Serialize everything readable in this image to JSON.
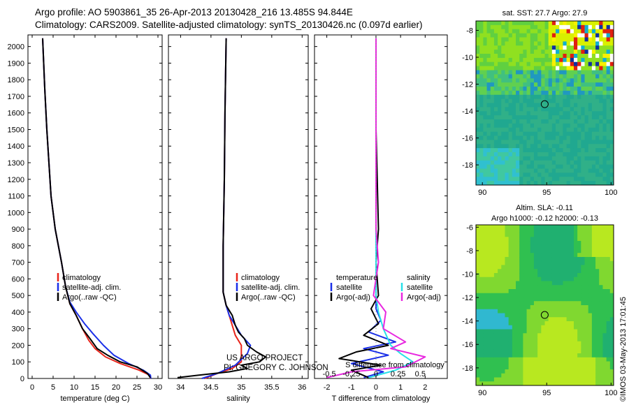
{
  "header": {
    "line1": "Argo profile: AO 5903861_35 26-Apr-2013 20130428_216 13.485S 94.844E",
    "line2": "Climatology: CARS2009. Satellite-adjusted climatology: synTS_20130426.nc (0.097d earlier)"
  },
  "colors": {
    "climatology": "#e8241a",
    "satellite": "#1a2fe8",
    "argo": "#000000",
    "salinity_satellite": "#28e0e8",
    "salinity_argo": "#e828e0"
  },
  "chart_data": [
    {
      "type": "line",
      "name": "temperature-profile",
      "xlabel": "temperature (deg C)",
      "xlim": [
        -1,
        31
      ],
      "ylim": [
        2070,
        0
      ],
      "xticks": [
        0,
        5,
        10,
        15,
        20,
        25,
        30
      ],
      "yticks": [
        0,
        100,
        200,
        300,
        400,
        500,
        600,
        700,
        800,
        900,
        1000,
        1100,
        1200,
        1300,
        1400,
        1500,
        1600,
        1700,
        1800,
        1900,
        2000
      ],
      "legend": [
        "climatology",
        "satellite-adj. clim.",
        "Argo(..raw -QC)"
      ],
      "series": [
        {
          "name": "climatology",
          "color": "#e8241a",
          "points": [
            [
              28.2,
              0
            ],
            [
              28.0,
              20
            ],
            [
              25.5,
              50
            ],
            [
              21,
              90
            ],
            [
              17.5,
              130
            ],
            [
              15,
              180
            ],
            [
              13.5,
              230
            ],
            [
              12,
              300
            ],
            [
              10.5,
              380
            ],
            [
              9,
              450
            ],
            [
              8,
              550
            ],
            [
              7,
              700
            ],
            [
              5.5,
              900
            ],
            [
              4.5,
              1100
            ],
            [
              4,
              1300
            ],
            [
              3.5,
              1500
            ],
            [
              3,
              1750
            ],
            [
              2.5,
              2050
            ]
          ]
        },
        {
          "name": "satellite",
          "color": "#1a2fe8",
          "points": [
            [
              28.3,
              0
            ],
            [
              28.2,
              20
            ],
            [
              26.5,
              50
            ],
            [
              23,
              90
            ],
            [
              19.5,
              140
            ],
            [
              17,
              200
            ],
            [
              14.5,
              270
            ],
            [
              12.5,
              330
            ],
            [
              10.5,
              400
            ],
            [
              9,
              460
            ],
            [
              8,
              550
            ],
            [
              7,
              700
            ],
            [
              5.5,
              900
            ],
            [
              4.5,
              1100
            ],
            [
              4,
              1300
            ],
            [
              3.5,
              1500
            ],
            [
              3,
              1750
            ],
            [
              2.5,
              2050
            ]
          ]
        },
        {
          "name": "argo",
          "color": "#000000",
          "points": [
            [
              28.2,
              5
            ],
            [
              27.5,
              30
            ],
            [
              25,
              70
            ],
            [
              21,
              100
            ],
            [
              18,
              140
            ],
            [
              15.5,
              180
            ],
            [
              13.8,
              240
            ],
            [
              12,
              300
            ],
            [
              10.5,
              380
            ],
            [
              9,
              450
            ],
            [
              8,
              550
            ],
            [
              7,
              700
            ],
            [
              5.5,
              900
            ],
            [
              4.5,
              1100
            ],
            [
              4,
              1300
            ],
            [
              3.5,
              1500
            ],
            [
              3,
              1750
            ],
            [
              2.5,
              2050
            ]
          ]
        }
      ]
    },
    {
      "type": "line",
      "name": "salinity-profile",
      "xlabel": "salinity",
      "xlim": [
        33.8,
        36.1
      ],
      "ylim": [
        2070,
        0
      ],
      "xticks": [
        34,
        34.5,
        35,
        35.5,
        36
      ],
      "legend": [
        "climatology",
        "satellite-adj. clim.",
        "Argo(..raw -QC)"
      ],
      "series": [
        {
          "name": "climatology",
          "color": "#e8241a",
          "points": [
            [
              34.4,
              0
            ],
            [
              34.6,
              30
            ],
            [
              34.85,
              60
            ],
            [
              35.0,
              100
            ],
            [
              35.0,
              150
            ],
            [
              35.0,
              200
            ],
            [
              34.9,
              260
            ],
            [
              34.85,
              320
            ],
            [
              34.8,
              380
            ],
            [
              34.75,
              440
            ],
            [
              34.7,
              520
            ],
            [
              34.7,
              800
            ],
            [
              34.72,
              1200
            ],
            [
              34.73,
              1600
            ],
            [
              34.75,
              2050
            ]
          ]
        },
        {
          "name": "satellite",
          "color": "#1a2fe8",
          "points": [
            [
              34.35,
              0
            ],
            [
              34.6,
              30
            ],
            [
              34.9,
              80
            ],
            [
              35.1,
              150
            ],
            [
              35.15,
              200
            ],
            [
              35.0,
              260
            ],
            [
              34.9,
              320
            ],
            [
              34.8,
              380
            ],
            [
              34.75,
              440
            ],
            [
              34.7,
              520
            ],
            [
              34.7,
              800
            ],
            [
              34.72,
              1200
            ],
            [
              34.73,
              1600
            ],
            [
              34.75,
              2050
            ]
          ]
        },
        {
          "name": "argo",
          "color": "#000000",
          "points": [
            [
              33.95,
              5
            ],
            [
              34.3,
              20
            ],
            [
              34.8,
              40
            ],
            [
              35.1,
              60
            ],
            [
              35.0,
              80
            ],
            [
              35.3,
              100
            ],
            [
              35.4,
              130
            ],
            [
              35.25,
              160
            ],
            [
              35.1,
              200
            ],
            [
              35.05,
              240
            ],
            [
              34.95,
              280
            ],
            [
              34.9,
              320
            ],
            [
              34.85,
              380
            ],
            [
              34.75,
              440
            ],
            [
              34.7,
              520
            ],
            [
              34.7,
              800
            ],
            [
              34.72,
              1200
            ],
            [
              34.73,
              1600
            ],
            [
              34.75,
              2050
            ]
          ]
        }
      ]
    },
    {
      "type": "line",
      "name": "difference-profile",
      "xlabel": "T difference from climatology",
      "xlabel_top": "S difference from climatology",
      "xlim": [
        -2.5,
        2.9
      ],
      "ylim": [
        2070,
        0
      ],
      "xticks": [
        -2,
        -1,
        0,
        1,
        2
      ],
      "sticks": [
        "-0.5",
        "-0.25",
        "0",
        "0.25",
        "0.5"
      ],
      "legend_temperature": [
        "temperature",
        "satellite",
        "Argo(-adj)"
      ],
      "legend_salinity": [
        "salinity",
        "satellite",
        "Argo(-adj)"
      ],
      "series": [
        {
          "name": "temperature-satellite",
          "color": "#1a2fe8",
          "points": [
            [
              -0.5,
              5
            ],
            [
              0.3,
              40
            ],
            [
              -1.0,
              90
            ],
            [
              0.5,
              140
            ],
            [
              -0.5,
              180
            ],
            [
              0.8,
              220
            ],
            [
              -0.3,
              280
            ],
            [
              0.2,
              350
            ],
            [
              0,
              420
            ],
            [
              0,
              600
            ],
            [
              0,
              900
            ],
            [
              0,
              1500
            ],
            [
              0,
              2050
            ]
          ]
        },
        {
          "name": "temperature-argo",
          "color": "#000000",
          "points": [
            [
              -0.3,
              5
            ],
            [
              -1.0,
              50
            ],
            [
              0.2,
              80
            ],
            [
              -1.5,
              120
            ],
            [
              -0.8,
              160
            ],
            [
              0.5,
              200
            ],
            [
              -0.5,
              260
            ],
            [
              0.1,
              330
            ],
            [
              -0.2,
              420
            ],
            [
              0.1,
              500
            ],
            [
              0,
              700
            ],
            [
              0.1,
              900
            ],
            [
              0,
              1500
            ],
            [
              0,
              2050
            ]
          ]
        },
        {
          "name": "salinity-satellite",
          "color": "#28e0e8",
          "points": [
            [
              -0.3,
              5
            ],
            [
              0.8,
              50
            ],
            [
              1.5,
              100
            ],
            [
              1.0,
              150
            ],
            [
              0.6,
              200
            ],
            [
              0.3,
              300
            ],
            [
              0.1,
              400
            ],
            [
              0,
              500
            ],
            [
              0,
              900
            ],
            [
              0,
              1500
            ],
            [
              0,
              2050
            ]
          ]
        },
        {
          "name": "salinity-argo",
          "color": "#e828e0",
          "points": [
            [
              -2.0,
              5
            ],
            [
              -1.0,
              40
            ],
            [
              1.2,
              70
            ],
            [
              2.0,
              130
            ],
            [
              0.6,
              180
            ],
            [
              1.2,
              220
            ],
            [
              0.3,
              300
            ],
            [
              0.4,
              400
            ],
            [
              -0.1,
              500
            ],
            [
              0.1,
              700
            ],
            [
              0,
              900
            ],
            [
              0,
              1500
            ],
            [
              0,
              2050
            ]
          ]
        }
      ]
    },
    {
      "type": "heatmap",
      "name": "sst-map",
      "title": "sat. SST: 27.7 Argo: 27.9",
      "xlim": [
        89.5,
        100.2
      ],
      "ylim": [
        -19.5,
        -7.3
      ],
      "xticks": [
        90,
        95,
        100
      ],
      "yticks": [
        -8,
        -10,
        -12,
        -14,
        -16,
        -18
      ],
      "argo_position": [
        94.844,
        -13.485
      ]
    },
    {
      "type": "heatmap",
      "name": "sla-map",
      "title": "Altim. SLA: -0.11",
      "subtitle": "Argo h1000: -0.12 h2000: -0.13",
      "xlim": [
        89.5,
        100.2
      ],
      "ylim": [
        -19.5,
        -5.8
      ],
      "xticks": [
        90,
        95,
        100
      ],
      "yticks": [
        -6,
        -8,
        -10,
        -12,
        -14,
        -16,
        -18
      ],
      "argo_position": [
        94.844,
        -13.485
      ]
    }
  ],
  "credits": {
    "project": "US ARGO PROJECT",
    "pi": "PI: GREGORY C. JOHNSON"
  },
  "stamp": "©IMOS 03-May-2013 17:01:45"
}
